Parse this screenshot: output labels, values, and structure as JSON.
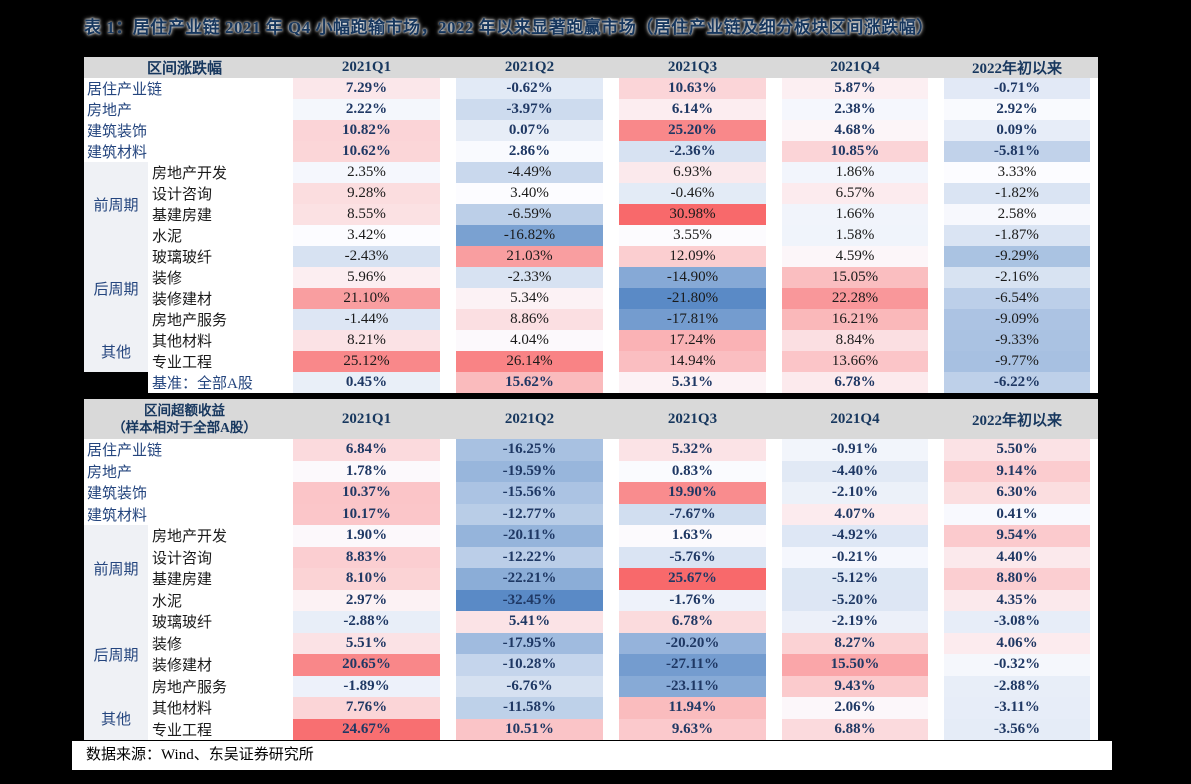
{
  "title": "表 1：居住产业链 2021 年 Q4 小幅跑输市场，2022 年以来显著跑赢市场（居住产业链及细分板块区间涨跌幅）",
  "footer": {
    "source_label": "数据来源：Wind、东吴证券研究所"
  },
  "colors": {
    "heat_min_blue": "#5A8AC6",
    "heat_mid_white": "#FCFCFF",
    "heat_max_red": "#F8696B",
    "header_band_bg": "#D9D9D9",
    "group_cell_bg": "#EFF1F5",
    "navy_text": "#17375E",
    "value_navy": "#1F3864",
    "page_bg": "#000000"
  },
  "chart_data": [
    {
      "type": "heatmap",
      "section_label": "区间涨跌幅",
      "columns": [
        "2021Q1",
        "2021Q2",
        "2021Q3",
        "2021Q4",
        "2022年初以来"
      ],
      "value_unit": "percent",
      "color_scale": "blue(min) - white(median) - red(max), computed per section",
      "rows": [
        {
          "label": "居住产业链",
          "emphasis": true,
          "values": [
            7.29,
            -0.62,
            10.63,
            5.87,
            -0.71
          ]
        },
        {
          "label": "房地产",
          "emphasis": true,
          "values": [
            2.22,
            -3.97,
            6.14,
            2.38,
            2.92
          ]
        },
        {
          "label": "建筑装饰",
          "emphasis": true,
          "values": [
            10.82,
            0.07,
            25.2,
            4.68,
            0.09
          ]
        },
        {
          "label": "建筑材料",
          "emphasis": true,
          "values": [
            10.62,
            2.86,
            -2.36,
            10.85,
            -5.81
          ]
        },
        {
          "label": "房地产开发",
          "group": "前周期",
          "values": [
            2.35,
            -4.49,
            6.93,
            1.86,
            3.33
          ]
        },
        {
          "label": "设计咨询",
          "group": "前周期",
          "values": [
            9.28,
            3.4,
            -0.46,
            6.57,
            -1.82
          ]
        },
        {
          "label": "基建房建",
          "group": "前周期",
          "values": [
            8.55,
            -6.59,
            30.98,
            1.66,
            2.58
          ]
        },
        {
          "label": "水泥",
          "group": "前周期",
          "values": [
            3.42,
            -16.82,
            3.55,
            1.58,
            -1.87
          ]
        },
        {
          "label": "玻璃玻纤",
          "group": "后周期",
          "values": [
            -2.43,
            21.03,
            12.09,
            4.59,
            -9.29
          ]
        },
        {
          "label": "装修",
          "group": "后周期",
          "values": [
            5.96,
            -2.33,
            -14.9,
            15.05,
            -2.16
          ]
        },
        {
          "label": "装修建材",
          "group": "后周期",
          "values": [
            21.1,
            5.34,
            -21.8,
            22.28,
            -6.54
          ]
        },
        {
          "label": "房地产服务",
          "group": "后周期",
          "values": [
            -1.44,
            8.86,
            -17.81,
            16.21,
            -9.09
          ]
        },
        {
          "label": "其他材料",
          "group": "其他",
          "values": [
            8.21,
            4.04,
            17.24,
            8.84,
            -9.33
          ]
        },
        {
          "label": "专业工程",
          "group": "其他",
          "values": [
            25.12,
            26.14,
            14.94,
            13.66,
            -9.77
          ]
        },
        {
          "label": "基准：全部A股",
          "emphasis": true,
          "black_cell": true,
          "values": [
            0.45,
            15.62,
            5.31,
            6.78,
            -6.22
          ]
        }
      ]
    },
    {
      "type": "heatmap",
      "section_label": "区间超额收益",
      "section_label_line2": "（样本相对于全部A股）",
      "columns": [
        "2021Q1",
        "2021Q2",
        "2021Q3",
        "2021Q4",
        "2022年初以来"
      ],
      "value_unit": "percent",
      "color_scale": "blue(min) - white(median) - red(max), computed per section",
      "rows": [
        {
          "label": "居住产业链",
          "emphasis": true,
          "values": [
            6.84,
            -16.25,
            5.32,
            -0.91,
            5.5
          ]
        },
        {
          "label": "房地产",
          "emphasis": true,
          "values": [
            1.78,
            -19.59,
            0.83,
            -4.4,
            9.14
          ]
        },
        {
          "label": "建筑装饰",
          "emphasis": true,
          "values": [
            10.37,
            -15.56,
            19.9,
            -2.1,
            6.3
          ]
        },
        {
          "label": "建筑材料",
          "emphasis": true,
          "values": [
            10.17,
            -12.77,
            -7.67,
            4.07,
            0.41
          ]
        },
        {
          "label": "房地产开发",
          "emphasis": true,
          "group": "前周期",
          "values": [
            1.9,
            -20.11,
            1.63,
            -4.92,
            9.54
          ]
        },
        {
          "label": "设计咨询",
          "emphasis": true,
          "group": "前周期",
          "values": [
            8.83,
            -12.22,
            -5.76,
            -0.21,
            4.4
          ]
        },
        {
          "label": "基建房建",
          "emphasis": true,
          "group": "前周期",
          "values": [
            8.1,
            -22.21,
            25.67,
            -5.12,
            8.8
          ]
        },
        {
          "label": "水泥",
          "emphasis": true,
          "group": "前周期",
          "values": [
            2.97,
            -32.45,
            -1.76,
            -5.2,
            4.35
          ]
        },
        {
          "label": "玻璃玻纤",
          "emphasis": true,
          "group": "后周期",
          "values": [
            -2.88,
            5.41,
            6.78,
            -2.19,
            -3.08
          ]
        },
        {
          "label": "装修",
          "emphasis": true,
          "group": "后周期",
          "values": [
            5.51,
            -17.95,
            -20.2,
            8.27,
            4.06
          ]
        },
        {
          "label": "装修建材",
          "emphasis": true,
          "group": "后周期",
          "values": [
            20.65,
            -10.28,
            -27.11,
            15.5,
            -0.32
          ]
        },
        {
          "label": "房地产服务",
          "emphasis": true,
          "group": "后周期",
          "values": [
            -1.89,
            -6.76,
            -23.11,
            9.43,
            -2.88
          ]
        },
        {
          "label": "其他材料",
          "emphasis": true,
          "group": "其他",
          "values": [
            7.76,
            -11.58,
            11.94,
            2.06,
            -3.11
          ]
        },
        {
          "label": "专业工程",
          "emphasis": true,
          "group": "其他",
          "values": [
            24.67,
            10.51,
            9.63,
            6.88,
            -3.56
          ]
        }
      ]
    }
  ]
}
